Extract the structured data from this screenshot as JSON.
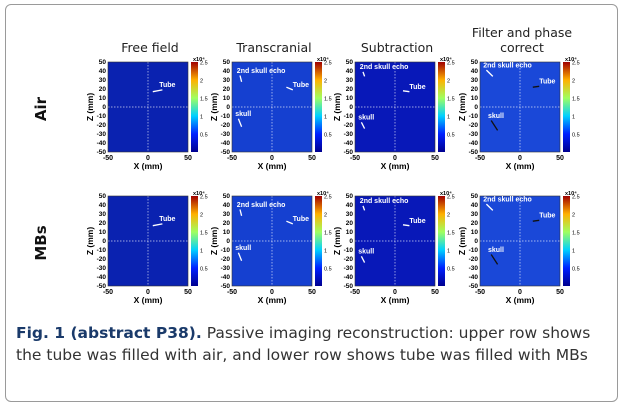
{
  "figure": {
    "column_titles": [
      "Free field",
      "Transcranial",
      "Subtraction",
      "Filter and phase correct"
    ],
    "row_labels": [
      "Air",
      "MBs"
    ],
    "axes": {
      "y_label": "Z (mm)",
      "x_label": "X (mm)",
      "y_ticks": [
        "50",
        "40",
        "30",
        "20",
        "10",
        "0",
        "-10",
        "-20",
        "-30",
        "-40",
        "-50"
      ],
      "x_ticks": [
        "-50",
        "0",
        "50"
      ],
      "colorbar_multiplier": "x10⁴",
      "colorbar_ticks": [
        "2.5",
        "2",
        "1.5",
        "1",
        "0.5"
      ]
    },
    "panels": [
      {
        "annotations": [
          "Tube"
        ]
      },
      {
        "annotations": [
          "2nd skull echo",
          "Tube",
          "skull"
        ]
      },
      {
        "annotations": [
          "2nd skull echo",
          "Tube",
          "skull"
        ]
      },
      {
        "annotations": [
          "2nd skull echo",
          "Tube",
          "skull"
        ]
      },
      {
        "annotations": [
          "Tube"
        ]
      },
      {
        "annotations": [
          "2nd skull echo",
          "Tube",
          "skull"
        ]
      },
      {
        "annotations": [
          "2nd skull echo",
          "Tube",
          "skull"
        ]
      },
      {
        "annotations": [
          "2nd skull echo",
          "Tube",
          "skull"
        ]
      }
    ]
  },
  "caption": {
    "label": "Fig. 1 (abstract P38).",
    "text": "Passive imaging reconstruction: upper row shows the tube was filled with air, and lower row shows tube was filled with MBs"
  }
}
